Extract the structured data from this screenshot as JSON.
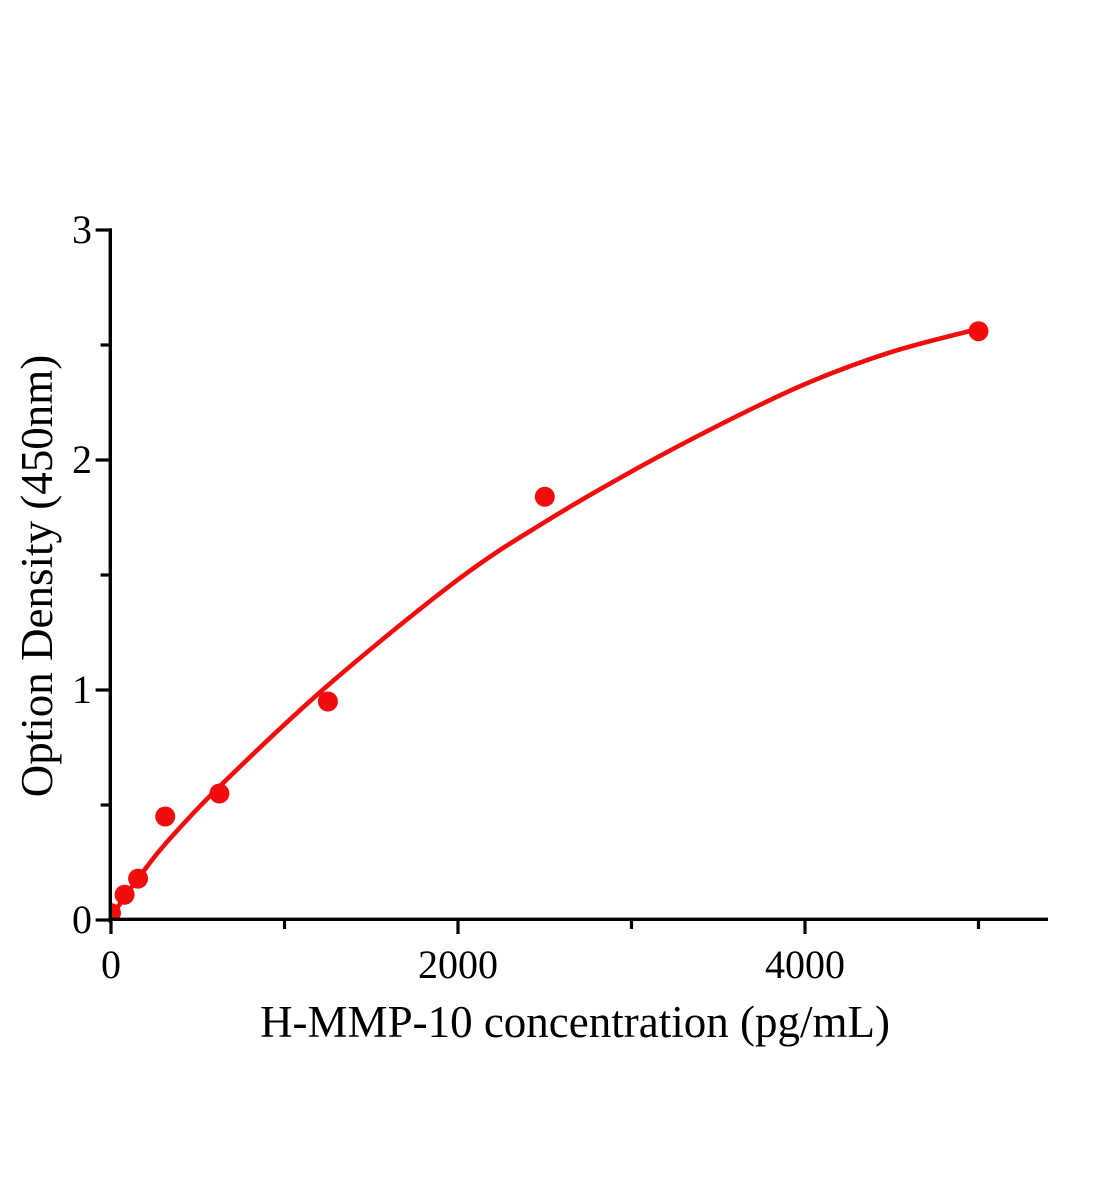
{
  "chart_data": {
    "type": "scatter",
    "title": "",
    "xlabel": "H-MMP-10 concentration (pg/mL)",
    "ylabel": "Option Density (450nm)",
    "xlim": [
      0,
      5400
    ],
    "ylim": [
      0,
      3
    ],
    "x_major_ticks": [
      0,
      2000,
      4000
    ],
    "x_minor_ticks": [
      1000,
      3000,
      5000
    ],
    "y_major_ticks": [
      0,
      1,
      2,
      3
    ],
    "y_minor_ticks": [
      0.5,
      1.5,
      2.5
    ],
    "grid": false,
    "legend_position": "none",
    "points": [
      {
        "x": 0,
        "y": 0.03
      },
      {
        "x": 78.1,
        "y": 0.11
      },
      {
        "x": 156.3,
        "y": 0.18
      },
      {
        "x": 312.5,
        "y": 0.45
      },
      {
        "x": 625,
        "y": 0.55
      },
      {
        "x": 1250,
        "y": 0.95
      },
      {
        "x": 2500,
        "y": 1.84
      },
      {
        "x": 5000,
        "y": 2.56
      }
    ],
    "fit_curve": [
      [
        0,
        0.01
      ],
      [
        78,
        0.1
      ],
      [
        156,
        0.18
      ],
      [
        312,
        0.33
      ],
      [
        625,
        0.58
      ],
      [
        1250,
        1.02
      ],
      [
        2000,
        1.48
      ],
      [
        2500,
        1.73
      ],
      [
        3000,
        1.95
      ],
      [
        3500,
        2.15
      ],
      [
        4000,
        2.33
      ],
      [
        4500,
        2.47
      ],
      [
        5000,
        2.57
      ]
    ],
    "colors": {
      "marker": "#f20d0d",
      "line": "#f20d0d",
      "axis": "#000000",
      "background": "#ffffff"
    },
    "marker_radius_px": 10
  }
}
